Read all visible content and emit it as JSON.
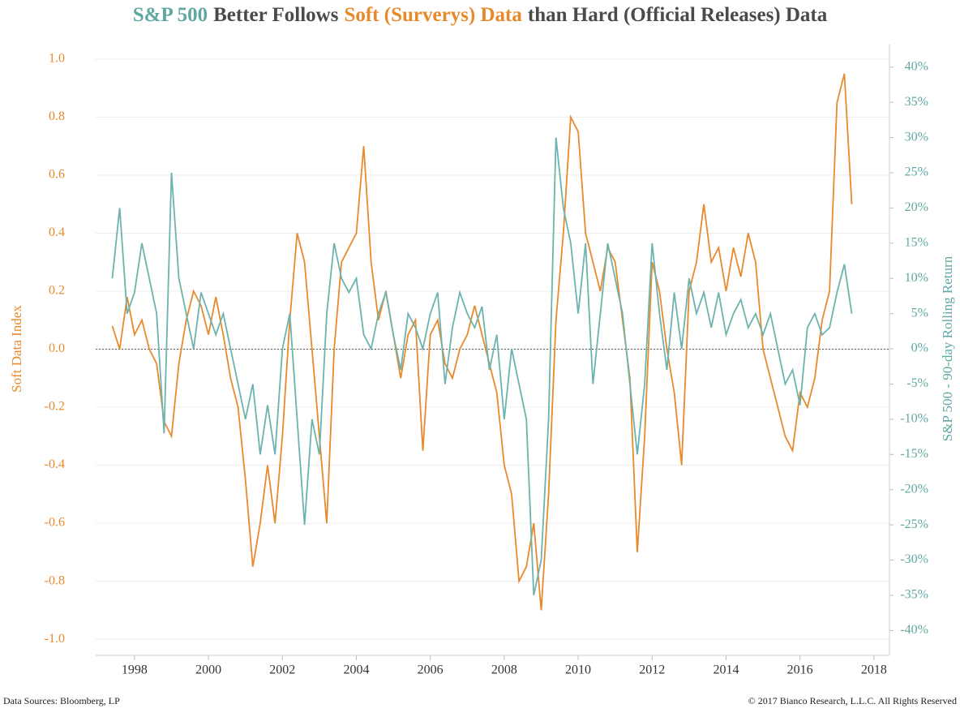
{
  "chart_data": {
    "type": "line",
    "title": [
      "S&P 500",
      "Better Follows",
      "Soft (Surverys) Data",
      "than Hard (Official Releases) Data"
    ],
    "title_colors": [
      "#5fa8a1",
      "#4a4a4a",
      "#e8892b",
      "#4a4a4a"
    ],
    "y_label": "Soft Data Index",
    "y2_label": "S&P 500 - 90-day Rolling Return",
    "source": "Data Sources: Bloomberg, LP",
    "copyright": "© 2017 Bianco Research, L.L.C. All Rights Reserved",
    "xlim": [
      1996.95,
      2018.42
    ],
    "xticks": [
      1998,
      2000,
      2002,
      2004,
      2006,
      2008,
      2010,
      2012,
      2014,
      2016,
      2018
    ],
    "ylim": [
      -1.05,
      1.05
    ],
    "yticks": [
      {
        "value": -1.0,
        "label": "-1.0"
      },
      -0.8,
      -0.6,
      -0.4,
      -0.2,
      {
        "value": 0.0,
        "label": "0.0"
      },
      0.2,
      0.4,
      0.6,
      0.8,
      {
        "value": 1.0,
        "label": "1.0"
      }
    ],
    "y2lim": [
      -43.3,
      43.2
    ],
    "y2ticks": [
      {
        "value": -40,
        "label": "-40%"
      },
      {
        "value": -35,
        "label": "-35%"
      },
      {
        "value": -30,
        "label": "-30%"
      },
      {
        "value": -25,
        "label": "-25%"
      },
      {
        "value": -20,
        "label": "-20%"
      },
      {
        "value": -15,
        "label": "-15%"
      },
      {
        "value": -10,
        "label": "-10%"
      },
      {
        "value": -5,
        "label": "-5%"
      },
      {
        "value": 0,
        "label": "0%"
      },
      {
        "value": 5,
        "label": "5%"
      },
      {
        "value": 10,
        "label": "10%"
      },
      {
        "value": 15,
        "label": "15%"
      },
      {
        "value": 20,
        "label": "20%"
      },
      {
        "value": 25,
        "label": "25%"
      },
      {
        "value": 30,
        "label": "30%"
      },
      {
        "value": 35,
        "label": "35%"
      },
      {
        "value": 40,
        "label": "40%"
      }
    ],
    "y_color": "#e8892b",
    "y2_color": "#5fa8a1",
    "grid": true,
    "x": [
      1997.4,
      1997.6,
      1997.8,
      1998.0,
      1998.2,
      1998.4,
      1998.6,
      1998.8,
      1999.0,
      1999.2,
      1999.4,
      1999.6,
      1999.8,
      2000.0,
      2000.2,
      2000.4,
      2000.6,
      2000.8,
      2001.0,
      2001.2,
      2001.4,
      2001.6,
      2001.8,
      2002.0,
      2002.2,
      2002.4,
      2002.6,
      2002.8,
      2003.0,
      2003.2,
      2003.4,
      2003.6,
      2003.8,
      2004.0,
      2004.2,
      2004.4,
      2004.6,
      2004.8,
      2005.0,
      2005.2,
      2005.4,
      2005.6,
      2005.8,
      2006.0,
      2006.2,
      2006.4,
      2006.6,
      2006.8,
      2007.0,
      2007.2,
      2007.4,
      2007.6,
      2007.8,
      2008.0,
      2008.2,
      2008.4,
      2008.6,
      2008.8,
      2009.0,
      2009.2,
      2009.4,
      2009.6,
      2009.8,
      2010.0,
      2010.2,
      2010.4,
      2010.6,
      2010.8,
      2011.0,
      2011.2,
      2011.4,
      2011.6,
      2011.8,
      2012.0,
      2012.2,
      2012.4,
      2012.6,
      2012.8,
      2013.0,
      2013.2,
      2013.4,
      2013.6,
      2013.8,
      2014.0,
      2014.2,
      2014.4,
      2014.6,
      2014.8,
      2015.0,
      2015.2,
      2015.4,
      2015.6,
      2015.8,
      2016.0,
      2016.2,
      2016.4,
      2016.6,
      2016.8,
      2017.0,
      2017.2,
      2017.4
    ],
    "series": [
      {
        "color": "#e8892b",
        "values": [
          0.08,
          0.0,
          0.18,
          0.05,
          0.1,
          0.0,
          -0.05,
          -0.25,
          -0.3,
          -0.05,
          0.1,
          0.2,
          0.15,
          0.05,
          0.18,
          0.05,
          -0.1,
          -0.2,
          -0.45,
          -0.75,
          -0.6,
          -0.4,
          -0.6,
          -0.3,
          0.1,
          0.4,
          0.3,
          0.0,
          -0.3,
          -0.6,
          0.0,
          0.3,
          0.35,
          0.4,
          0.7,
          0.3,
          0.1,
          0.2,
          0.05,
          -0.1,
          0.05,
          0.1,
          -0.35,
          0.05,
          0.1,
          -0.05,
          -0.1,
          0.0,
          0.05,
          0.15,
          0.05,
          -0.05,
          -0.15,
          -0.4,
          -0.5,
          -0.8,
          -0.75,
          -0.6,
          -0.9,
          -0.5,
          0.1,
          0.4,
          0.8,
          0.75,
          0.4,
          0.3,
          0.2,
          0.35,
          0.3,
          0.1,
          -0.1,
          -0.7,
          -0.3,
          0.3,
          0.2,
          0.0,
          -0.15,
          -0.4,
          0.2,
          0.3,
          0.5,
          0.3,
          0.35,
          0.2,
          0.35,
          0.25,
          0.4,
          0.3,
          0.0,
          -0.1,
          -0.2,
          -0.3,
          -0.35,
          -0.15,
          -0.2,
          -0.1,
          0.1,
          0.2,
          0.85,
          0.95,
          0.5
        ]
      },
      {
        "color": "#6db3ad",
        "axis": "y2",
        "values": [
          10,
          20,
          5,
          8,
          15,
          10,
          5,
          -12,
          25,
          10,
          5,
          0,
          8,
          5,
          2,
          5,
          0,
          -5,
          -10,
          -5,
          -15,
          -8,
          -15,
          0,
          5,
          -10,
          -25,
          -10,
          -15,
          5,
          15,
          10,
          8,
          10,
          2,
          0,
          5,
          8,
          2,
          -3,
          5,
          3,
          0,
          5,
          8,
          -5,
          3,
          8,
          5,
          3,
          6,
          -3,
          2,
          -10,
          0,
          -5,
          -10,
          -35,
          -30,
          -10,
          30,
          20,
          15,
          5,
          15,
          -5,
          5,
          15,
          10,
          5,
          -5,
          -15,
          -5,
          15,
          5,
          -3,
          8,
          0,
          10,
          5,
          8,
          3,
          8,
          2,
          5,
          7,
          3,
          5,
          2,
          5,
          0,
          -5,
          -3,
          -8,
          3,
          5,
          2,
          3,
          8,
          12,
          5
        ]
      }
    ]
  }
}
